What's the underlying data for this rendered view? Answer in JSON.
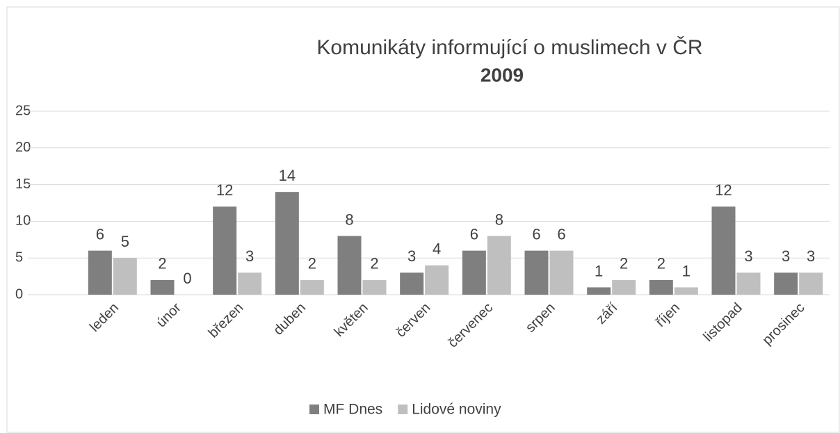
{
  "chart_data": {
    "type": "bar",
    "title": "Komunikáty informující o muslimech v ČR",
    "subtitle": "2009",
    "categories": [
      "leden",
      "únor",
      "březen",
      "duben",
      "květen",
      "červen",
      "červenec",
      "srpen",
      "září",
      "říjen",
      "listopad",
      "prosinec"
    ],
    "series": [
      {
        "name": "MF Dnes",
        "color": "#7f7f7f",
        "values": [
          6,
          2,
          12,
          14,
          8,
          3,
          6,
          6,
          1,
          2,
          12,
          3
        ]
      },
      {
        "name": "Lidové noviny",
        "color": "#bfbfbf",
        "values": [
          5,
          0,
          3,
          2,
          2,
          4,
          8,
          6,
          2,
          1,
          3,
          3
        ]
      }
    ],
    "ylim": [
      0,
      25
    ],
    "yticks": [
      0,
      5,
      10,
      15,
      20,
      25
    ],
    "grid": true,
    "legend": "bottom"
  }
}
